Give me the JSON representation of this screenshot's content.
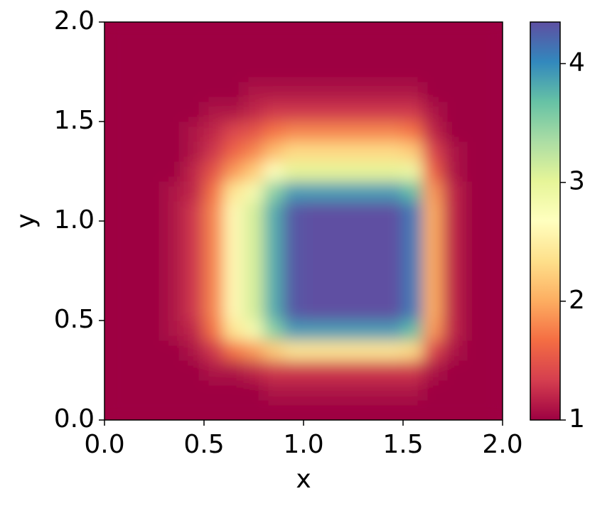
{
  "chart_data": {
    "type": "heatmap",
    "xlabel": "x",
    "ylabel": "y",
    "x": [
      0.05,
      0.15,
      0.25,
      0.35,
      0.45,
      0.55,
      0.65,
      0.75,
      0.85,
      0.95,
      1.05,
      1.15,
      1.25,
      1.35,
      1.45,
      1.55,
      1.65,
      1.75,
      1.85,
      1.95
    ],
    "y": [
      0.05,
      0.15,
      0.25,
      0.35,
      0.45,
      0.55,
      0.65,
      0.75,
      0.85,
      0.95,
      1.05,
      1.15,
      1.25,
      1.35,
      1.45,
      1.55,
      1.65,
      1.75,
      1.85,
      1.95
    ],
    "z": [
      [
        1,
        1,
        1,
        1,
        1,
        1,
        1,
        1,
        1,
        1,
        1,
        1,
        1,
        1,
        1,
        1,
        1,
        1,
        1,
        1
      ],
      [
        1,
        1,
        1,
        1,
        1,
        1,
        1,
        1,
        1.1,
        1.1,
        1.1,
        1.1,
        1.1,
        1.1,
        1.1,
        1.1,
        1,
        1,
        1,
        1
      ],
      [
        1,
        1,
        1,
        1,
        1,
        1.1,
        1.1,
        1.2,
        1.3,
        1.3,
        1.3,
        1.3,
        1.3,
        1.3,
        1.3,
        1.3,
        1.1,
        1,
        1,
        1
      ],
      [
        1,
        1,
        1,
        1,
        1.1,
        1.3,
        1.7,
        1.9,
        2.2,
        2.4,
        2.4,
        2.4,
        2.4,
        2.4,
        2.4,
        2.3,
        1.4,
        1.1,
        1,
        1
      ],
      [
        1,
        1,
        1,
        1.1,
        1.2,
        1.7,
        2.4,
        2.8,
        3.5,
        3.9,
        3.9,
        3.9,
        3.9,
        3.9,
        3.9,
        3.7,
        1.9,
        1.2,
        1,
        1
      ],
      [
        1,
        1,
        1,
        1.1,
        1.3,
        1.8,
        2.6,
        3.1,
        3.8,
        4.3,
        4.35,
        4.35,
        4.35,
        4.35,
        4.35,
        4.1,
        2,
        1.2,
        1,
        1
      ],
      [
        1,
        1,
        1,
        1.1,
        1.3,
        1.8,
        2.6,
        3.1,
        3.8,
        4.3,
        4.35,
        4.35,
        4.35,
        4.35,
        4.35,
        4.1,
        2,
        1.2,
        1,
        1
      ],
      [
        1,
        1,
        1,
        1.1,
        1.3,
        1.8,
        2.6,
        3.1,
        3.8,
        4.3,
        4.35,
        4.35,
        4.35,
        4.35,
        4.35,
        4.1,
        2,
        1.2,
        1,
        1
      ],
      [
        1,
        1,
        1,
        1.1,
        1.3,
        1.8,
        2.6,
        3.1,
        3.8,
        4.3,
        4.35,
        4.35,
        4.35,
        4.35,
        4.35,
        4.1,
        2,
        1.2,
        1,
        1
      ],
      [
        1,
        1,
        1,
        1.1,
        1.3,
        1.8,
        2.6,
        3.1,
        3.8,
        4.3,
        4.35,
        4.35,
        4.35,
        4.35,
        4.35,
        4.1,
        2,
        1.2,
        1,
        1
      ],
      [
        1,
        1,
        1,
        1.1,
        1.3,
        1.8,
        2.6,
        3.1,
        3.8,
        4.3,
        4.35,
        4.35,
        4.35,
        4.35,
        4.35,
        4.1,
        2,
        1.2,
        1,
        1
      ],
      [
        1,
        1,
        1,
        1.1,
        1.2,
        1.7,
        2.4,
        2.8,
        3.5,
        3.9,
        3.9,
        3.9,
        3.9,
        3.9,
        3.9,
        3.7,
        1.9,
        1.2,
        1,
        1
      ],
      [
        1,
        1,
        1,
        1,
        1.2,
        1.5,
        1.9,
        2.2,
        2.7,
        3,
        3,
        3,
        3,
        3,
        3,
        2.9,
        1.6,
        1.1,
        1,
        1
      ],
      [
        1,
        1,
        1,
        1,
        1.1,
        1.3,
        1.6,
        1.8,
        2.1,
        2.3,
        2.3,
        2.3,
        2.3,
        2.3,
        2.3,
        2.2,
        1.4,
        1.1,
        1,
        1
      ],
      [
        1,
        1,
        1,
        1,
        1.1,
        1.2,
        1.4,
        1.5,
        1.7,
        1.8,
        1.8,
        1.8,
        1.8,
        1.8,
        1.8,
        1.7,
        1.2,
        1,
        1,
        1
      ],
      [
        1,
        1,
        1,
        1,
        1,
        1.1,
        1.1,
        1.2,
        1.3,
        1.3,
        1.3,
        1.3,
        1.3,
        1.3,
        1.3,
        1.3,
        1.1,
        1,
        1,
        1
      ],
      [
        1,
        1,
        1,
        1,
        1,
        1,
        1,
        1.1,
        1.1,
        1.1,
        1.1,
        1.1,
        1.1,
        1.1,
        1.1,
        1.1,
        1,
        1,
        1,
        1
      ],
      [
        1,
        1,
        1,
        1,
        1,
        1,
        1,
        1,
        1,
        1,
        1,
        1,
        1,
        1,
        1,
        1,
        1,
        1,
        1,
        1
      ],
      [
        1,
        1,
        1,
        1,
        1,
        1,
        1,
        1,
        1,
        1,
        1,
        1,
        1,
        1,
        1,
        1,
        1,
        1,
        1,
        1
      ],
      [
        1,
        1,
        1,
        1,
        1,
        1,
        1,
        1,
        1,
        1,
        1,
        1,
        1,
        1,
        1,
        1,
        1,
        1,
        1,
        1
      ]
    ],
    "xlim": [
      0,
      2
    ],
    "ylim": [
      0,
      2
    ],
    "xticks": [
      {
        "value": 0,
        "label": "0.0"
      },
      0.5,
      {
        "value": 1,
        "label": "1.0"
      },
      1.5,
      {
        "value": 2,
        "label": "2.0"
      }
    ],
    "yticks": [
      {
        "value": 0,
        "label": "0.0"
      },
      0.5,
      {
        "value": 1,
        "label": "1.0"
      },
      1.5,
      {
        "value": 2,
        "label": "2.0"
      }
    ],
    "clim": [
      1,
      4.35
    ],
    "cticks": [
      1,
      2,
      3,
      4
    ],
    "colormap": [
      "#9e0142",
      "#d53e4f",
      "#f46d43",
      "#fdae61",
      "#fee08b",
      "#ffffbf",
      "#e6f598",
      "#abdda4",
      "#66c2a5",
      "#3288bd",
      "#5e4fa2"
    ]
  }
}
